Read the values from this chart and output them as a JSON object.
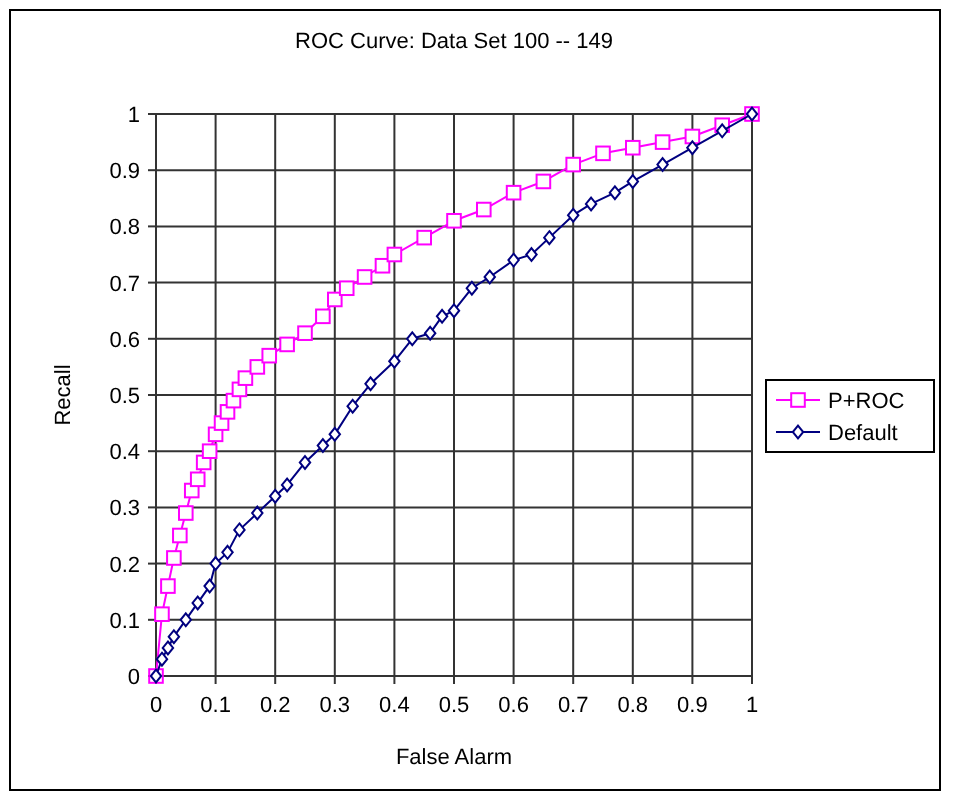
{
  "chart_data": {
    "type": "line",
    "title": "ROC Curve: Data Set 100 -- 149",
    "xlabel": "False Alarm",
    "ylabel": "Recall",
    "xlim": [
      0,
      1
    ],
    "ylim": [
      0,
      1
    ],
    "xticks": [
      0,
      0.1,
      0.2,
      0.3,
      0.4,
      0.5,
      0.6,
      0.7,
      0.8,
      0.9,
      1
    ],
    "yticks": [
      0,
      0.1,
      0.2,
      0.3,
      0.4,
      0.5,
      0.6,
      0.7,
      0.8,
      0.9,
      1
    ],
    "grid": true,
    "legend": "right",
    "series": [
      {
        "name": "P+ROC",
        "color": "#ff00ff",
        "marker": "square",
        "x": [
          0,
          0.01,
          0.02,
          0.03,
          0.04,
          0.05,
          0.06,
          0.07,
          0.08,
          0.09,
          0.1,
          0.11,
          0.12,
          0.13,
          0.14,
          0.15,
          0.17,
          0.19,
          0.22,
          0.25,
          0.28,
          0.3,
          0.32,
          0.35,
          0.38,
          0.4,
          0.45,
          0.5,
          0.55,
          0.6,
          0.65,
          0.7,
          0.75,
          0.8,
          0.85,
          0.9,
          0.95,
          1
        ],
        "values": [
          0,
          0.11,
          0.16,
          0.21,
          0.25,
          0.29,
          0.33,
          0.35,
          0.38,
          0.4,
          0.43,
          0.45,
          0.47,
          0.49,
          0.51,
          0.53,
          0.55,
          0.57,
          0.59,
          0.61,
          0.64,
          0.67,
          0.69,
          0.71,
          0.73,
          0.75,
          0.78,
          0.81,
          0.83,
          0.86,
          0.88,
          0.91,
          0.93,
          0.94,
          0.95,
          0.96,
          0.98,
          1
        ]
      },
      {
        "name": "Default",
        "color": "#000080",
        "marker": "diamond",
        "x": [
          0,
          0.01,
          0.02,
          0.03,
          0.05,
          0.07,
          0.09,
          0.1,
          0.12,
          0.14,
          0.17,
          0.2,
          0.22,
          0.25,
          0.28,
          0.3,
          0.33,
          0.36,
          0.4,
          0.43,
          0.46,
          0.48,
          0.5,
          0.53,
          0.56,
          0.6,
          0.63,
          0.66,
          0.7,
          0.73,
          0.77,
          0.8,
          0.85,
          0.9,
          0.95,
          1
        ],
        "values": [
          0,
          0.03,
          0.05,
          0.07,
          0.1,
          0.13,
          0.16,
          0.2,
          0.22,
          0.26,
          0.29,
          0.32,
          0.34,
          0.38,
          0.41,
          0.43,
          0.48,
          0.52,
          0.56,
          0.6,
          0.61,
          0.64,
          0.65,
          0.69,
          0.71,
          0.74,
          0.75,
          0.78,
          0.82,
          0.84,
          0.86,
          0.88,
          0.91,
          0.94,
          0.97,
          1
        ]
      }
    ]
  }
}
